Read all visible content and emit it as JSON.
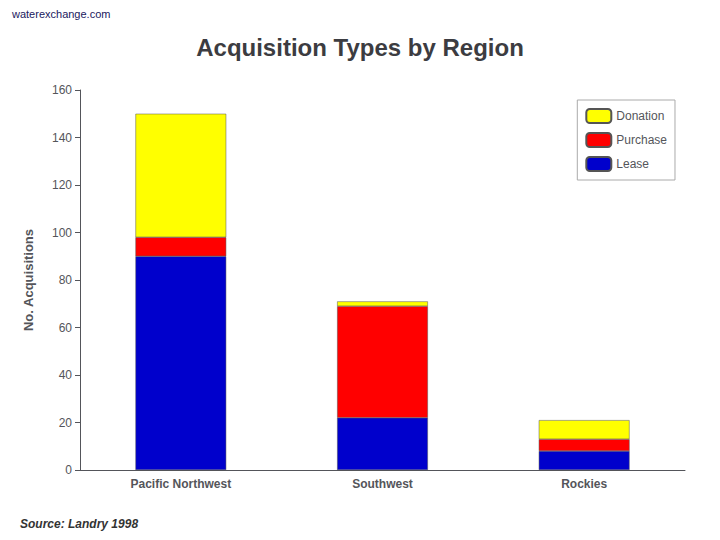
{
  "chart_data": {
    "type": "bar",
    "title": "Acquisition Types by Region",
    "ylabel": "No. Acquisitions",
    "annotations": [
      "waterexchange.com",
      "Source: Landry 1998"
    ],
    "categories": [
      "Pacific Northwest",
      "Southwest",
      "Rockies"
    ],
    "series": [
      {
        "name": "Lease",
        "color": "#0000cc",
        "values": [
          90,
          22,
          8
        ]
      },
      {
        "name": "Purchase",
        "color": "#ff0000",
        "values": [
          8,
          47,
          5
        ]
      },
      {
        "name": "Donation",
        "color": "#ffff00",
        "values": [
          52,
          2,
          8
        ]
      }
    ],
    "stacked": true,
    "ylim": [
      0,
      160
    ],
    "yticks": [
      0,
      20,
      40,
      60,
      80,
      100,
      120,
      140,
      160
    ],
    "grid": false,
    "legend": "upper right"
  }
}
